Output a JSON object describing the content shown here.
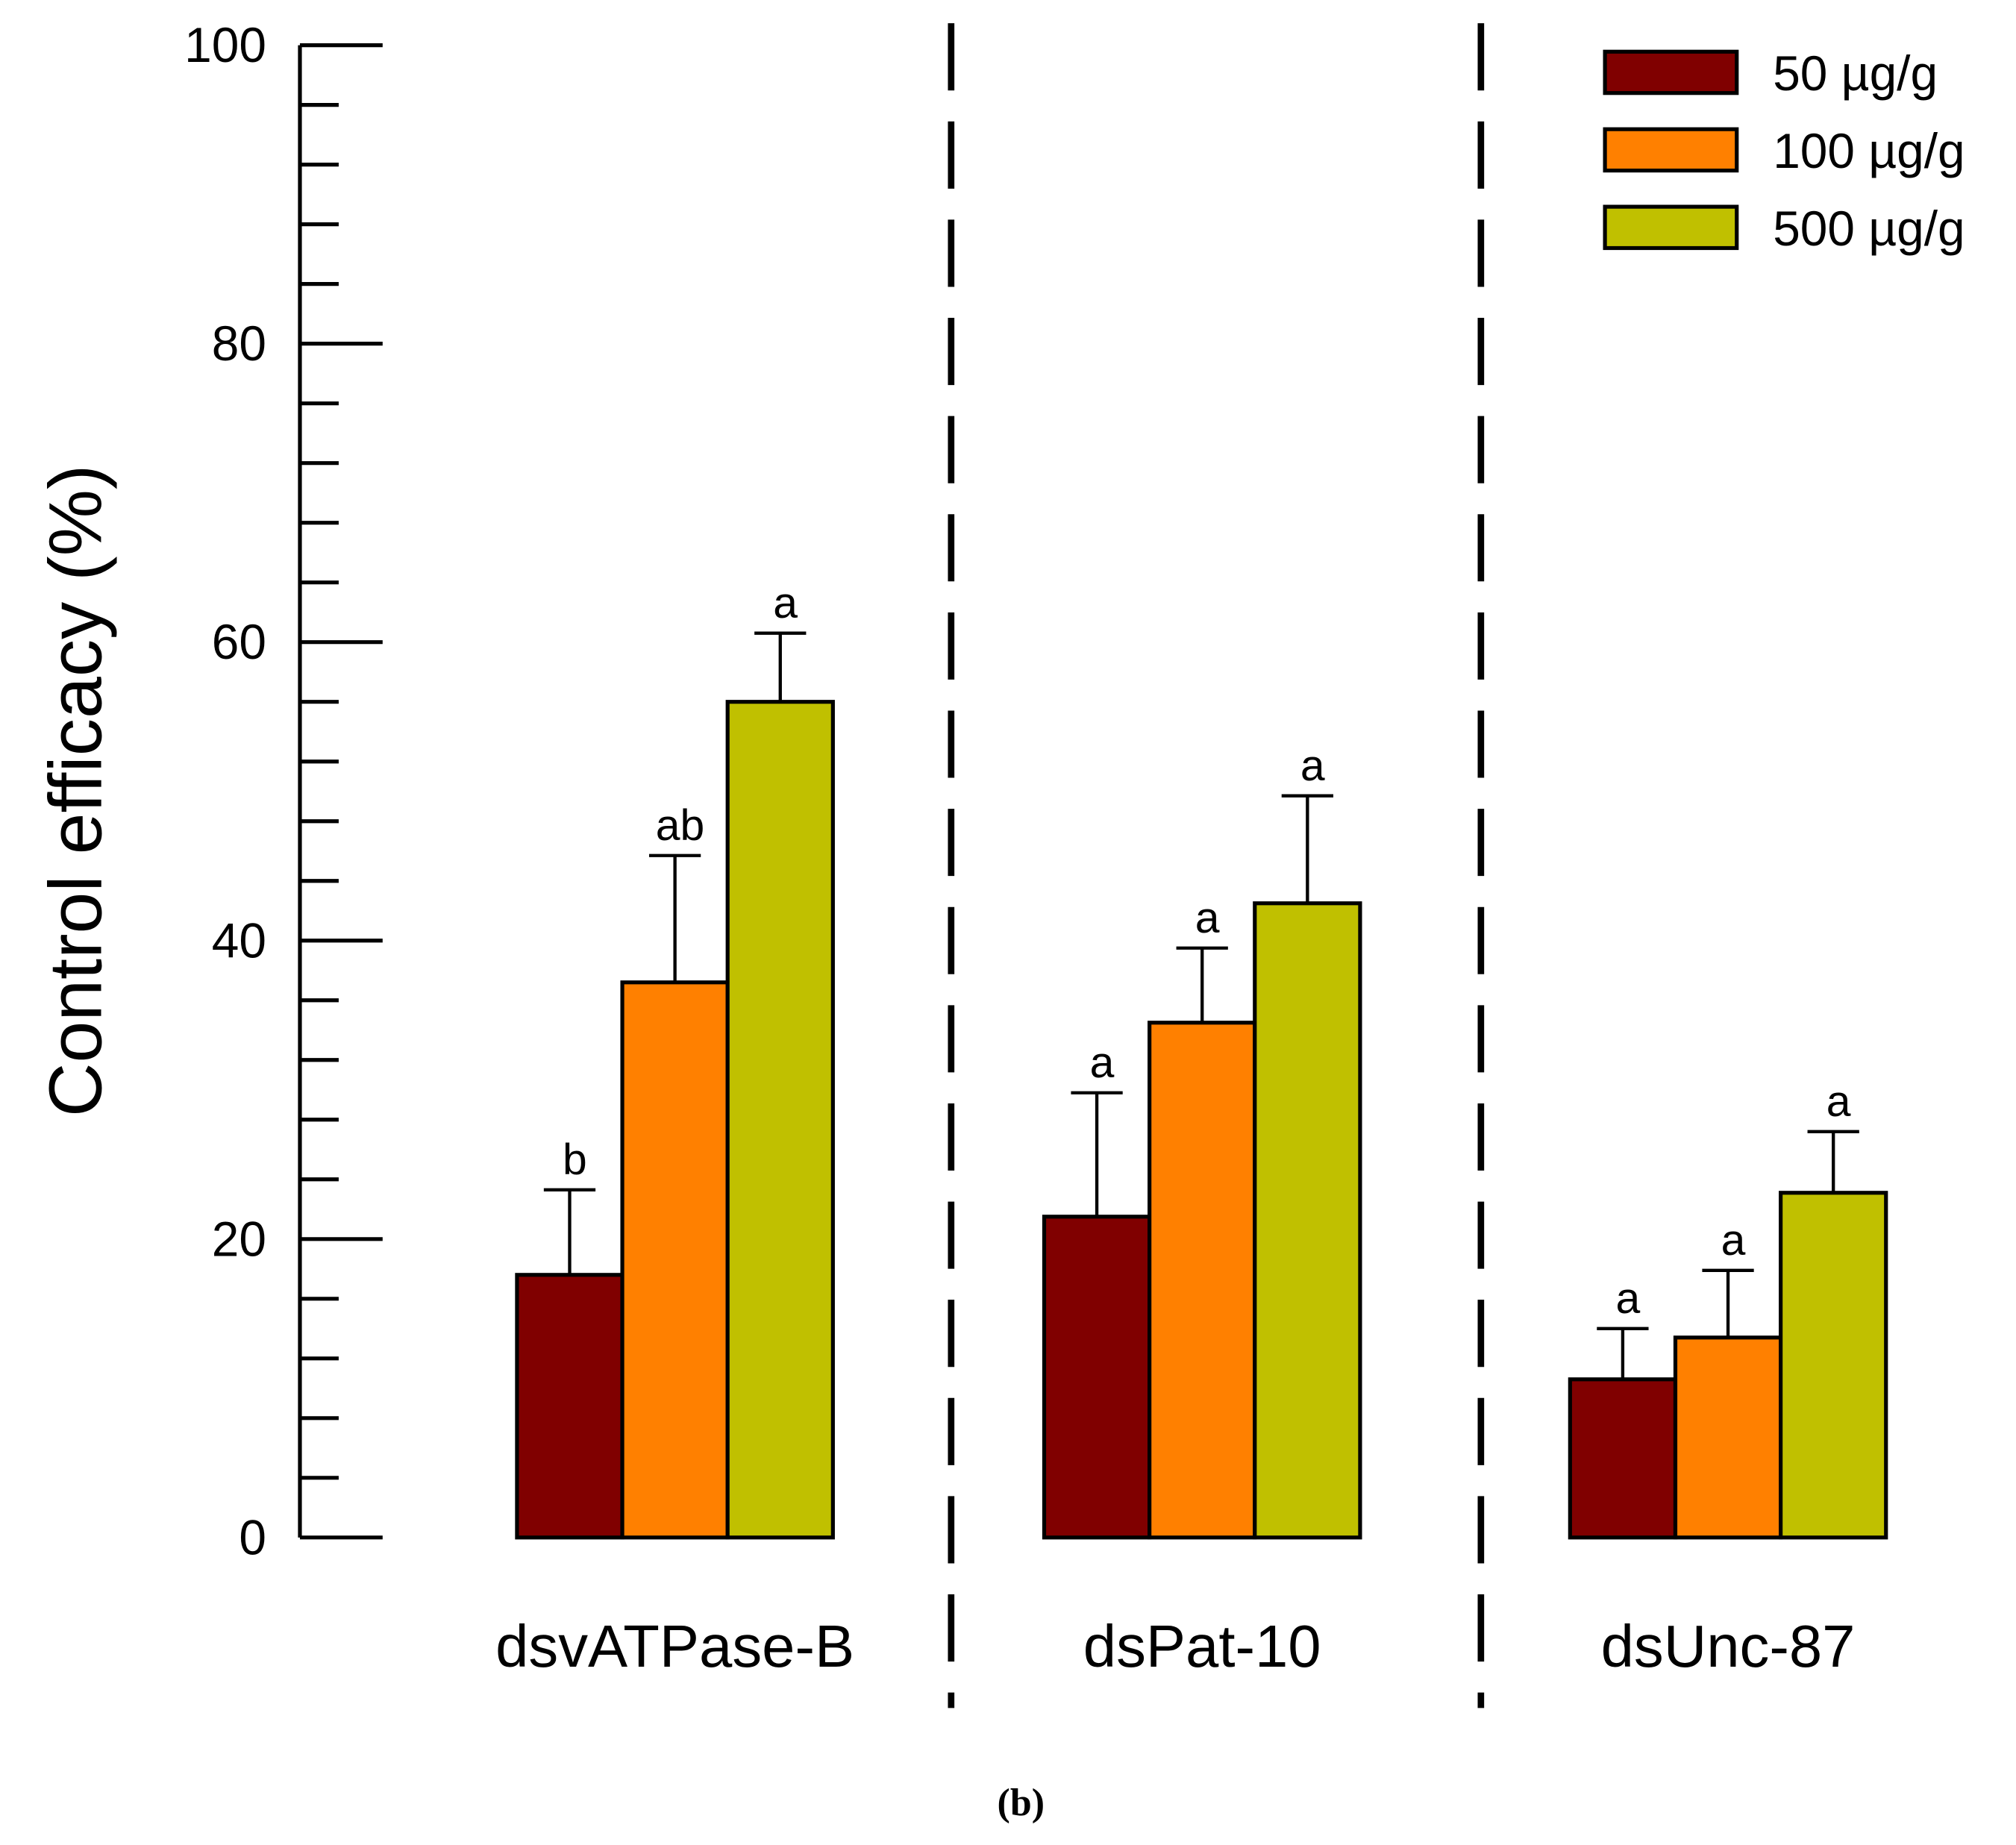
{
  "chart_data": {
    "type": "bar",
    "title": "",
    "xlabel": "",
    "ylabel": "Control efficacy (%)",
    "ylim": [
      0,
      100
    ],
    "yticks": [
      0,
      20,
      40,
      60,
      80,
      100
    ],
    "minor_tick_step": 4,
    "categories": [
      "dsvATPase-B",
      "dsPat-10",
      "dsUnc-87"
    ],
    "series": [
      {
        "name": "50 µg/g",
        "color": "#800000",
        "values": [
          17.6,
          21.5,
          10.6
        ],
        "error_upper": [
          23.3,
          29.8,
          14.0
        ],
        "letters": [
          "b",
          "a",
          "a"
        ]
      },
      {
        "name": "100 µg/g",
        "color": "#ff8000",
        "values": [
          37.2,
          34.5,
          13.4
        ],
        "error_upper": [
          45.7,
          39.5,
          17.9
        ],
        "letters": [
          "ab",
          "a",
          "a"
        ]
      },
      {
        "name": "500 µg/g",
        "color": "#c0c000",
        "values": [
          56.0,
          42.5,
          23.1
        ],
        "error_upper": [
          60.6,
          49.7,
          27.2
        ],
        "letters": [
          "a",
          "a",
          "a"
        ]
      }
    ],
    "legend_position": "top-right",
    "group_separators": "dashed vertical lines",
    "panel_label": "(b)"
  }
}
